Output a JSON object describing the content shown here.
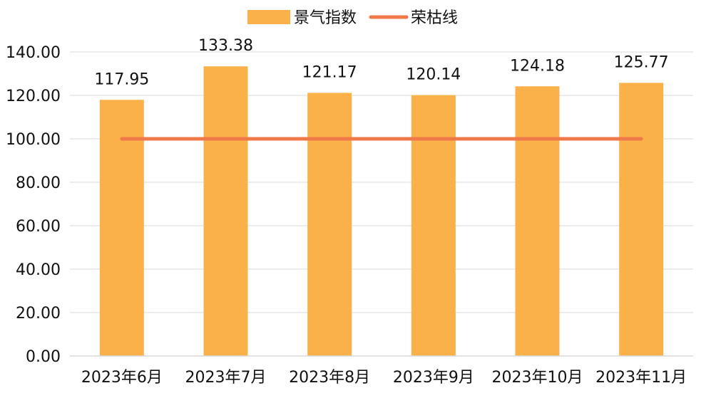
{
  "chart_data": {
    "type": "bar",
    "categories": [
      "2023年6月",
      "2023年7月",
      "2023年8月",
      "2023年9月",
      "2023年10月",
      "2023年11月"
    ],
    "series": [
      {
        "name": "景气指数",
        "type": "bar",
        "values": [
          117.95,
          133.38,
          121.17,
          120.14,
          124.18,
          125.77
        ],
        "color": "#fbb14a"
      },
      {
        "name": "荣枯线",
        "type": "line",
        "values": [
          100,
          100,
          100,
          100,
          100,
          100
        ],
        "color": "#f0794a"
      }
    ],
    "data_labels": [
      "117.95",
      "133.38",
      "121.17",
      "120.14",
      "124.18",
      "125.77"
    ],
    "ylim": [
      0,
      140
    ],
    "yticks": [
      0,
      20,
      40,
      60,
      80,
      100,
      120,
      140
    ],
    "ytick_labels": [
      "0.00",
      "20.00",
      "40.00",
      "60.00",
      "80.00",
      "100.00",
      "120.00",
      "140.00"
    ],
    "grid": true,
    "legend_position": "top-center"
  }
}
